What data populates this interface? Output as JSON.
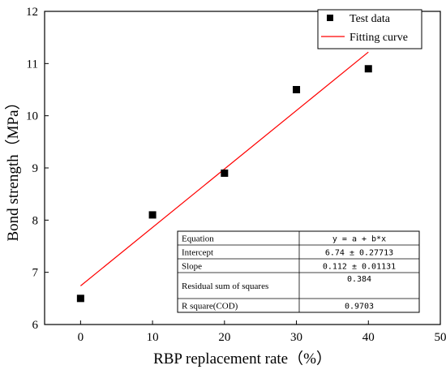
{
  "chart_data": {
    "type": "scatter",
    "xlabel": "RBP replacement rate（%）",
    "ylabel": "Bond strength（MPa）",
    "xlim": [
      -5,
      50
    ],
    "ylim": [
      6,
      12
    ],
    "xticks": [
      0,
      10,
      20,
      30,
      40,
      50
    ],
    "yticks": [
      6,
      7,
      8,
      9,
      10,
      11,
      12
    ],
    "series": [
      {
        "name": "Test data",
        "kind": "points",
        "marker": "square",
        "color": "#000000",
        "x": [
          0,
          10,
          20,
          30,
          40
        ],
        "y": [
          6.5,
          8.1,
          8.9,
          10.5,
          10.9
        ]
      },
      {
        "name": "Fitting curve",
        "kind": "line",
        "color": "#ff0000",
        "x": [
          0,
          40
        ],
        "y": [
          6.74,
          11.22
        ]
      }
    ],
    "legend": {
      "position": "top-right",
      "labels": [
        "Test data",
        "Fitting curve"
      ]
    },
    "fit_table": {
      "rows": [
        {
          "label": "Equation",
          "value": "y = a + b*x"
        },
        {
          "label": "Intercept",
          "value": "6.74 ± 0.27713"
        },
        {
          "label": "Slope",
          "value": "0.112 ± 0.01131"
        },
        {
          "label": "Residual sum of squares",
          "value": "0.384"
        },
        {
          "label": "R square(COD)",
          "value": "0.9703"
        }
      ]
    },
    "grid": false
  }
}
